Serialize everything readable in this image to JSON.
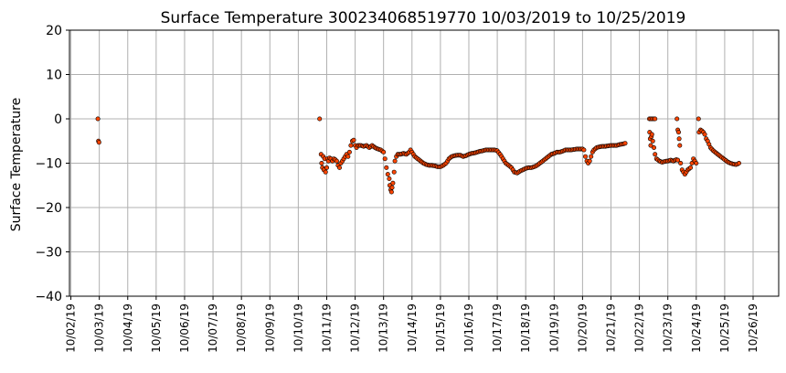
{
  "chart_data": {
    "type": "scatter",
    "title": "Surface Temperature 300234068519770  10/03/2019 to 10/25/2019",
    "xlabel": "",
    "ylabel": "Surface Temperature",
    "ylim": [
      -40,
      20
    ],
    "yticks": [
      20,
      10,
      0,
      -10,
      -20,
      -30,
      -40
    ],
    "ytick_labels": [
      "20",
      "10",
      "0",
      "−10",
      "−20",
      "−30",
      "−40"
    ],
    "xlim": [
      -0.05,
      24.9
    ],
    "x_tick_dates": [
      "10/02/19",
      "10/03/19",
      "10/04/19",
      "10/05/19",
      "10/06/19",
      "10/07/19",
      "10/08/19",
      "10/09/19",
      "10/10/19",
      "10/11/19",
      "10/12/19",
      "10/13/19",
      "10/14/19",
      "10/15/19",
      "10/16/19",
      "10/17/19",
      "10/18/19",
      "10/19/19",
      "10/20/19",
      "10/21/19",
      "10/22/19",
      "10/23/19",
      "10/24/19",
      "10/25/19",
      "10/26/19"
    ],
    "grid": true,
    "marker_fill": "#ff4500",
    "marker_edge": "#000000",
    "series": [
      {
        "points": [
          [
            0.95,
            0
          ],
          [
            0.97,
            -5
          ],
          [
            0.99,
            -5.3
          ],
          [
            8.75,
            0
          ],
          [
            8.8,
            -8
          ],
          [
            8.82,
            -10
          ],
          [
            8.85,
            -11
          ],
          [
            8.88,
            -8.5
          ],
          [
            8.9,
            -11.5
          ],
          [
            8.93,
            -9
          ],
          [
            8.96,
            -12
          ],
          [
            9.0,
            -11
          ],
          [
            9.03,
            -9
          ],
          [
            9.06,
            -9.5
          ],
          [
            9.1,
            -8.8
          ],
          [
            9.15,
            -9
          ],
          [
            9.2,
            -9.5
          ],
          [
            9.25,
            -9
          ],
          [
            9.3,
            -9.2
          ],
          [
            9.35,
            -9.5
          ],
          [
            9.4,
            -10.5
          ],
          [
            9.45,
            -11
          ],
          [
            9.5,
            -10
          ],
          [
            9.55,
            -9.5
          ],
          [
            9.6,
            -9
          ],
          [
            9.65,
            -8.5
          ],
          [
            9.7,
            -8
          ],
          [
            9.75,
            -8.5
          ],
          [
            9.8,
            -7.5
          ],
          [
            9.85,
            -6
          ],
          [
            9.9,
            -5
          ],
          [
            9.95,
            -4.8
          ],
          [
            10.0,
            -6
          ],
          [
            10.05,
            -6.5
          ],
          [
            10.1,
            -6
          ],
          [
            10.2,
            -6
          ],
          [
            10.3,
            -6.2
          ],
          [
            10.4,
            -6
          ],
          [
            10.5,
            -6.5
          ],
          [
            10.6,
            -6
          ],
          [
            10.7,
            -6.5
          ],
          [
            10.8,
            -6.8
          ],
          [
            10.9,
            -7
          ],
          [
            11.0,
            -7.5
          ],
          [
            11.05,
            -9
          ],
          [
            11.1,
            -11
          ],
          [
            11.15,
            -12.5
          ],
          [
            11.2,
            -13.5
          ],
          [
            11.22,
            -15
          ],
          [
            11.25,
            -16
          ],
          [
            11.28,
            -16.5
          ],
          [
            11.3,
            -15.5
          ],
          [
            11.33,
            -14.5
          ],
          [
            11.37,
            -12
          ],
          [
            11.4,
            -9.5
          ],
          [
            11.45,
            -8.5
          ],
          [
            11.5,
            -8
          ],
          [
            11.6,
            -8
          ],
          [
            11.7,
            -7.8
          ],
          [
            11.8,
            -8
          ],
          [
            11.9,
            -7.5
          ],
          [
            11.95,
            -7
          ],
          [
            12.0,
            -7.5
          ],
          [
            12.1,
            -8.5
          ],
          [
            12.2,
            -9
          ],
          [
            12.3,
            -9.5
          ],
          [
            12.4,
            -10
          ],
          [
            12.5,
            -10.3
          ],
          [
            12.6,
            -10.5
          ],
          [
            12.7,
            -10.5
          ],
          [
            12.8,
            -10.6
          ],
          [
            12.9,
            -10.8
          ],
          [
            13.0,
            -10.8
          ],
          [
            13.1,
            -10.5
          ],
          [
            13.2,
            -10
          ],
          [
            13.3,
            -9
          ],
          [
            13.4,
            -8.5
          ],
          [
            13.5,
            -8.3
          ],
          [
            13.6,
            -8.2
          ],
          [
            13.7,
            -8.2
          ],
          [
            13.8,
            -8.5
          ],
          [
            13.9,
            -8.3
          ],
          [
            14.0,
            -8
          ],
          [
            14.1,
            -7.8
          ],
          [
            14.2,
            -7.7
          ],
          [
            14.3,
            -7.5
          ],
          [
            14.4,
            -7.3
          ],
          [
            14.5,
            -7.2
          ],
          [
            14.6,
            -7
          ],
          [
            14.7,
            -7
          ],
          [
            14.8,
            -7
          ],
          [
            14.9,
            -7
          ],
          [
            15.0,
            -7.2
          ],
          [
            15.1,
            -8
          ],
          [
            15.2,
            -9
          ],
          [
            15.3,
            -10
          ],
          [
            15.4,
            -10.5
          ],
          [
            15.5,
            -11
          ],
          [
            15.55,
            -11.5
          ],
          [
            15.6,
            -12
          ],
          [
            15.7,
            -12.2
          ],
          [
            15.8,
            -11.8
          ],
          [
            15.9,
            -11.5
          ],
          [
            16.0,
            -11.2
          ],
          [
            16.1,
            -11
          ],
          [
            16.2,
            -11
          ],
          [
            16.3,
            -10.8
          ],
          [
            16.4,
            -10.5
          ],
          [
            16.5,
            -10
          ],
          [
            16.6,
            -9.5
          ],
          [
            16.7,
            -9
          ],
          [
            16.8,
            -8.5
          ],
          [
            16.9,
            -8
          ],
          [
            17.0,
            -7.8
          ],
          [
            17.1,
            -7.5
          ],
          [
            17.2,
            -7.5
          ],
          [
            17.3,
            -7.3
          ],
          [
            17.4,
            -7
          ],
          [
            17.5,
            -7
          ],
          [
            17.6,
            -7
          ],
          [
            17.7,
            -6.9
          ],
          [
            17.8,
            -6.8
          ],
          [
            17.9,
            -6.8
          ],
          [
            18.0,
            -6.8
          ],
          [
            18.05,
            -7
          ],
          [
            18.1,
            -8.5
          ],
          [
            18.15,
            -9.5
          ],
          [
            18.2,
            -10
          ],
          [
            18.25,
            -9.5
          ],
          [
            18.3,
            -8.5
          ],
          [
            18.35,
            -7.5
          ],
          [
            18.4,
            -7
          ],
          [
            18.5,
            -6.5
          ],
          [
            18.6,
            -6.3
          ],
          [
            18.7,
            -6.2
          ],
          [
            18.8,
            -6.2
          ],
          [
            18.9,
            -6.1
          ],
          [
            19.0,
            -6
          ],
          [
            19.1,
            -6
          ],
          [
            19.2,
            -6
          ],
          [
            19.3,
            -5.8
          ],
          [
            19.4,
            -5.7
          ],
          [
            19.5,
            -5.5
          ],
          [
            20.35,
            0
          ],
          [
            20.45,
            0
          ],
          [
            20.55,
            0
          ],
          [
            20.36,
            -3
          ],
          [
            20.38,
            -4.5
          ],
          [
            20.4,
            -6
          ],
          [
            20.42,
            -4
          ],
          [
            20.44,
            -3.5
          ],
          [
            20.47,
            -5
          ],
          [
            20.55,
            -8
          ],
          [
            20.6,
            -9
          ],
          [
            20.7,
            -9.5
          ],
          [
            20.8,
            -9.8
          ],
          [
            20.9,
            -9.6
          ],
          [
            21.0,
            -9.5
          ],
          [
            21.1,
            -9.3
          ],
          [
            21.2,
            -9.5
          ],
          [
            21.3,
            -9.2
          ],
          [
            21.35,
            -9.3
          ],
          [
            21.32,
            0
          ],
          [
            21.35,
            -2.5
          ],
          [
            21.38,
            -3
          ],
          [
            21.4,
            -4.5
          ],
          [
            21.42,
            -6
          ],
          [
            21.45,
            -10
          ],
          [
            21.5,
            -11.5
          ],
          [
            21.55,
            -12
          ],
          [
            21.6,
            -12.5
          ],
          [
            21.65,
            -12
          ],
          [
            21.7,
            -11.5
          ],
          [
            21.8,
            -11
          ],
          [
            21.85,
            -10
          ],
          [
            21.9,
            -9
          ],
          [
            21.95,
            -9.5
          ],
          [
            22.0,
            -10
          ],
          [
            22.08,
            0
          ],
          [
            22.1,
            -3
          ],
          [
            22.15,
            -2.5
          ],
          [
            22.2,
            -2.7
          ],
          [
            22.25,
            -3
          ],
          [
            22.3,
            -3.5
          ],
          [
            22.35,
            -4.5
          ],
          [
            22.4,
            -5
          ],
          [
            22.5,
            -6.5
          ],
          [
            22.6,
            -7.2
          ],
          [
            22.7,
            -7.7
          ],
          [
            22.8,
            -8.2
          ],
          [
            22.9,
            -8.7
          ],
          [
            23.0,
            -9.2
          ],
          [
            23.1,
            -9.7
          ],
          [
            23.2,
            -10
          ],
          [
            23.3,
            -10.2
          ],
          [
            23.4,
            -10.3
          ],
          [
            23.45,
            -10.2
          ],
          [
            23.5,
            -10
          ]
        ]
      }
    ]
  }
}
